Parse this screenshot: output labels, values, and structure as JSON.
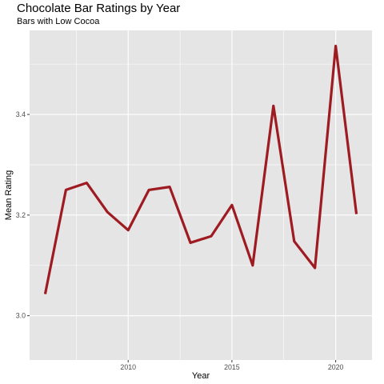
{
  "chart_data": {
    "type": "line",
    "title": "Chocolate Bar Ratings by Year",
    "subtitle": "Bars with Low Cocoa",
    "xlabel": "Year",
    "ylabel": "Mean Rating",
    "x": [
      2006,
      2007,
      2008,
      2009,
      2010,
      2011,
      2012,
      2013,
      2014,
      2015,
      2016,
      2017,
      2018,
      2019,
      2020,
      2021
    ],
    "series": [
      {
        "values": [
          3.043,
          3.25,
          3.264,
          3.206,
          3.17,
          3.25,
          3.256,
          3.145,
          3.158,
          3.22,
          3.1,
          3.417,
          3.148,
          3.095,
          3.536,
          3.202
        ]
      }
    ],
    "xlim": [
      2005.25,
      2021.75
    ],
    "ylim": [
      2.912,
      3.567
    ],
    "x_ticks": [
      2010,
      2015,
      2020
    ],
    "x_tick_labels": [
      "2010",
      "2015",
      "2020"
    ],
    "y_ticks": [
      3.0,
      3.2,
      3.4
    ],
    "y_tick_labels": [
      "3.0",
      "3.2",
      "3.4"
    ],
    "line_color": "#9e1b22",
    "panel_background": "#e5e5e5",
    "grid_color": "#ffffff",
    "grid": true,
    "legend": "none"
  }
}
